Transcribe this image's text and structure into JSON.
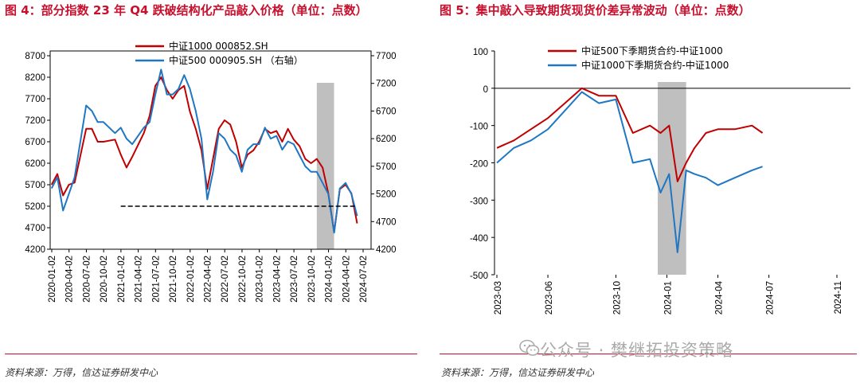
{
  "panel1": {
    "title": "图 4：部分指数 23 年 Q4 跌破结构化产品敲入价格（单位：点数）",
    "source": "资料来源：万得，信达证券研发中心"
  },
  "panel2": {
    "title": "图 5：集中敲入导致期货现货价差异常波动（单位：点数）",
    "source": "资料来源：万得，信达证券研发中心"
  },
  "watermark": "公众号 · 樊继拓投资策略",
  "colors": {
    "red": "#c00000",
    "blue": "#1f77c4",
    "shade": "#bfbfbf",
    "title": "#c8102e"
  },
  "chart_data": [
    {
      "type": "line",
      "left_ylim": [
        4200,
        8700
      ],
      "right_ylim": [
        4200,
        7700
      ],
      "left_yticks": [
        "8700",
        "8200",
        "7700",
        "7200",
        "6700",
        "6200",
        "5700",
        "5200",
        "4700",
        "4200"
      ],
      "right_yticks": [
        "7700",
        "7200",
        "6700",
        "6200",
        "5700",
        "5200",
        "4700",
        "4200"
      ],
      "x_ticks": [
        "2020-01-02",
        "2020-04-02",
        "2020-07-02",
        "2020-10-02",
        "2021-01-02",
        "2021-04-02",
        "2021-07-02",
        "2021-10-02",
        "2022-01-02",
        "2022-04-02",
        "2022-07-02",
        "2022-10-02",
        "2023-01-02",
        "2023-04-02",
        "2023-07-02",
        "2023-10-02",
        "2024-01-02",
        "2024-04-02",
        "2024-07-02"
      ],
      "shaded_period": [
        "2023-11",
        "2024-02"
      ],
      "reference_line": {
        "value": 5200,
        "axis": "left",
        "style": "dashed",
        "from": "2021-01",
        "to": "2024-06"
      },
      "series": [
        {
          "name": "中证1000  000852.SH",
          "axis": "left",
          "x": [
            "2020-01",
            "2020-02",
            "2020-03",
            "2020-04",
            "2020-05",
            "2020-07",
            "2020-08",
            "2020-09",
            "2020-10",
            "2020-12",
            "2021-01",
            "2021-02",
            "2021-03",
            "2021-05",
            "2021-06",
            "2021-07",
            "2021-08",
            "2021-09",
            "2021-10",
            "2021-11",
            "2021-12",
            "2022-01",
            "2022-02",
            "2022-03",
            "2022-04",
            "2022-05",
            "2022-06",
            "2022-07",
            "2022-08",
            "2022-09",
            "2022-10",
            "2022-11",
            "2022-12",
            "2023-01",
            "2023-02",
            "2023-03",
            "2023-04",
            "2023-05",
            "2023-06",
            "2023-07",
            "2023-08",
            "2023-09",
            "2023-10",
            "2023-11",
            "2023-12",
            "2024-01",
            "2024-02",
            "2024-03",
            "2024-04",
            "2024-05",
            "2024-06"
          ],
          "values": [
            5700,
            5950,
            5450,
            5700,
            5750,
            7000,
            7000,
            6700,
            6700,
            6750,
            6400,
            6100,
            6350,
            6900,
            7300,
            8000,
            8200,
            7900,
            7700,
            7900,
            8000,
            7400,
            7000,
            6500,
            5600,
            6300,
            7000,
            7200,
            7100,
            6700,
            6100,
            6400,
            6500,
            6700,
            7000,
            6900,
            6950,
            6700,
            7000,
            6750,
            6600,
            6300,
            6200,
            6300,
            6100,
            5500,
            4600,
            5600,
            5700,
            5500,
            4800
          ]
        },
        {
          "name": "中证500  000905.SH  （右轴）",
          "axis": "right",
          "x": [
            "2020-01",
            "2020-02",
            "2020-03",
            "2020-04",
            "2020-05",
            "2020-07",
            "2020-08",
            "2020-09",
            "2020-10",
            "2020-12",
            "2021-01",
            "2021-02",
            "2021-03",
            "2021-05",
            "2021-06",
            "2021-07",
            "2021-08",
            "2021-09",
            "2021-10",
            "2021-11",
            "2021-12",
            "2022-01",
            "2022-02",
            "2022-03",
            "2022-04",
            "2022-05",
            "2022-06",
            "2022-07",
            "2022-08",
            "2022-09",
            "2022-10",
            "2022-11",
            "2022-12",
            "2023-01",
            "2023-02",
            "2023-03",
            "2023-04",
            "2023-05",
            "2023-06",
            "2023-07",
            "2023-08",
            "2023-09",
            "2023-10",
            "2023-11",
            "2023-12",
            "2024-01",
            "2024-02",
            "2024-03",
            "2024-04",
            "2024-05",
            "2024-06"
          ],
          "values": [
            5300,
            5500,
            4900,
            5200,
            5500,
            6800,
            6700,
            6500,
            6500,
            6300,
            6400,
            6200,
            6100,
            6400,
            6500,
            7000,
            7450,
            7000,
            7000,
            7100,
            7350,
            7100,
            6700,
            6200,
            5100,
            5600,
            6300,
            6200,
            6000,
            5900,
            5600,
            6000,
            6100,
            6100,
            6400,
            6200,
            6250,
            6000,
            6150,
            6100,
            5900,
            5700,
            5600,
            5600,
            5400,
            5200,
            4500,
            5300,
            5400,
            5200,
            4800
          ]
        }
      ]
    },
    {
      "type": "line",
      "ylim": [
        -500,
        100
      ],
      "yticks": [
        "100",
        "0",
        "-100",
        "-200",
        "-300",
        "-400",
        "-500"
      ],
      "x_ticks": [
        "2023-03",
        "2023-06",
        "2023-10",
        "2024-01",
        "2024-04",
        "2024-07",
        "2024-11"
      ],
      "shaded_period": [
        "2023-12-15",
        "2024-02-05"
      ],
      "series": [
        {
          "name": "中证500下季期货合约-中证1000",
          "x": [
            "2023-03-01",
            "2023-04-01",
            "2023-05-01",
            "2023-06-01",
            "2023-07-01",
            "2023-08-01",
            "2023-09-01",
            "2023-10-01",
            "2023-11-01",
            "2023-12-01",
            "2023-12-20",
            "2024-01-05",
            "2024-01-20",
            "2024-02-05",
            "2024-02-20",
            "2024-03-10",
            "2024-04-01",
            "2024-05-01",
            "2024-06-01",
            "2024-06-20"
          ],
          "values": [
            -160,
            -140,
            -110,
            -80,
            -40,
            0,
            -20,
            -20,
            -120,
            -100,
            -120,
            -100,
            -250,
            -200,
            -160,
            -120,
            -110,
            -110,
            -100,
            -120
          ]
        },
        {
          "name": "中证1000下季期货合约-中证1000",
          "x": [
            "2023-03-01",
            "2023-04-01",
            "2023-05-01",
            "2023-06-01",
            "2023-07-01",
            "2023-08-01",
            "2023-09-01",
            "2023-10-01",
            "2023-11-01",
            "2023-12-01",
            "2023-12-20",
            "2024-01-05",
            "2024-01-20",
            "2024-02-05",
            "2024-02-20",
            "2024-03-10",
            "2024-04-01",
            "2024-05-01",
            "2024-06-01",
            "2024-06-20"
          ],
          "values": [
            -200,
            -160,
            -140,
            -110,
            -60,
            -10,
            -40,
            -30,
            -200,
            -190,
            -280,
            -230,
            -440,
            -220,
            -230,
            -240,
            -260,
            -240,
            -220,
            -210
          ]
        }
      ]
    }
  ]
}
